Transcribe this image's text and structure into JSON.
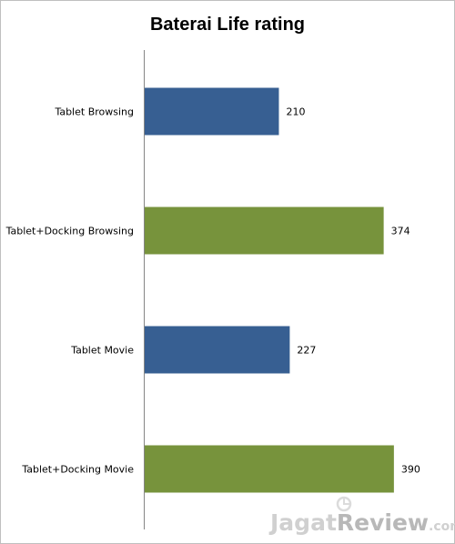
{
  "chart_data": {
    "type": "bar",
    "orientation": "horizontal",
    "title": "Baterai Life rating",
    "xlabel": "",
    "ylabel": "",
    "categories": [
      "Tablet Browsing",
      "Tablet+Docking Browsing",
      "Tablet Movie",
      "Tablet+Docking Movie"
    ],
    "values": [
      210,
      374,
      227,
      390
    ],
    "bar_colors": [
      "#375f92",
      "#77933c",
      "#375f92",
      "#77933c"
    ],
    "xlim": [
      0,
      450
    ],
    "grid": false,
    "legend": "none",
    "data_labels": true
  },
  "watermark": {
    "part1": "Jagat",
    "part2": "Review",
    "part3": ".com"
  }
}
